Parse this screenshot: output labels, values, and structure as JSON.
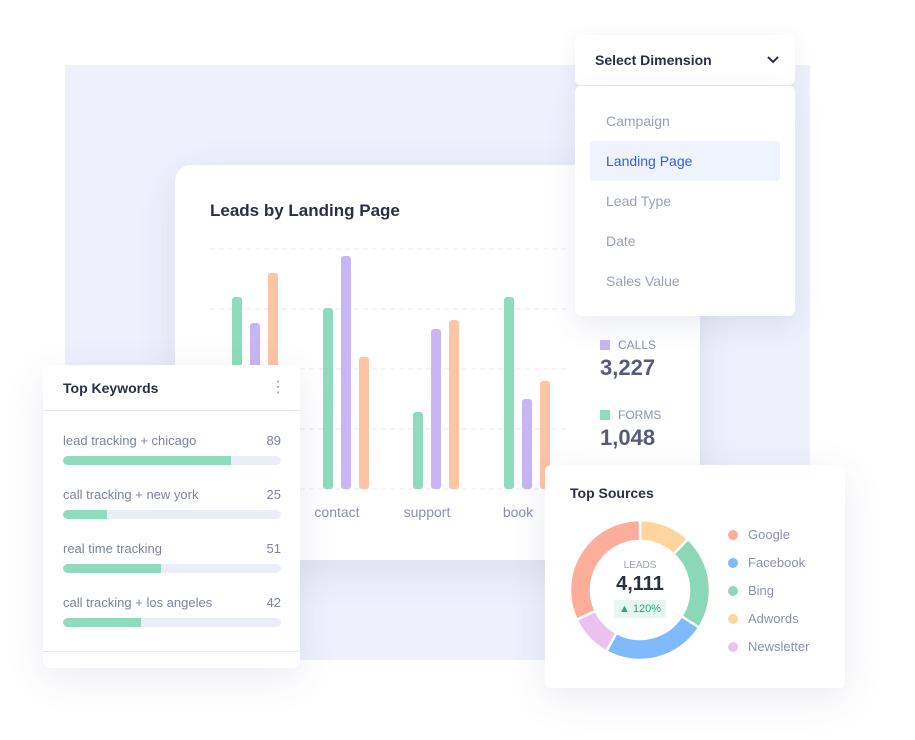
{
  "colors": {
    "forms": "#8edcbd",
    "calls": "#c8b6f4",
    "other": "#fdc4a6",
    "background": "#eef0fc",
    "accent": "#3360d8"
  },
  "chart_card": {
    "title": "Leads by Landing Page"
  },
  "chart_data": {
    "type": "bar",
    "title": "Leads by Landing Page",
    "categories": [
      "",
      "contact",
      "support",
      "book"
    ],
    "series": [
      {
        "color": "#8edcbd",
        "values": [
          192,
          181,
          77,
          192
        ]
      },
      {
        "color": "#c8b6f4",
        "values": [
          166,
          233,
          160,
          90
        ]
      },
      {
        "color": "#fdc4a6",
        "values": [
          216,
          132,
          169,
          108
        ]
      }
    ],
    "ylim": [
      0,
      240
    ],
    "grid": true
  },
  "legend": [
    {
      "label": "CALLS",
      "value": "3,227",
      "color": "#c8b6f4"
    },
    {
      "label": "FORMS",
      "value": "1,048",
      "color": "#8edcbd"
    }
  ],
  "dropdown": {
    "label": "Select Dimension",
    "icon": "chevron-down-icon",
    "options": [
      "Campaign",
      "Landing Page",
      "Lead Type",
      "Date",
      "Sales Value"
    ],
    "selected": "Landing Page"
  },
  "keywords": {
    "title": "Top Keywords",
    "menu_icon": "more-vertical-icon",
    "items": [
      {
        "label": "lead tracking + chicago",
        "value": "89",
        "progress": 0.77
      },
      {
        "label": "call tracking + new york",
        "value": "25",
        "progress": 0.2
      },
      {
        "label": "real time tracking",
        "value": "51",
        "progress": 0.45
      },
      {
        "label": "call tracking + los angeles",
        "value": "42",
        "progress": 0.36
      }
    ]
  },
  "sources": {
    "title": "Top Sources",
    "center_label": "LEADS",
    "center_value": "4,111",
    "change": "120%",
    "change_icon": "triangle-up-icon",
    "items": [
      {
        "label": "Google",
        "color": "#fdae9a",
        "share": 32
      },
      {
        "label": "Facebook",
        "color": "#7fbafc",
        "share": 24
      },
      {
        "label": "Bing",
        "color": "#8ad8b8",
        "share": 22
      },
      {
        "label": "Adwords",
        "color": "#fed59e",
        "share": 12
      },
      {
        "label": "Newsletter",
        "color": "#e9c3ee",
        "share": 10
      }
    ]
  }
}
